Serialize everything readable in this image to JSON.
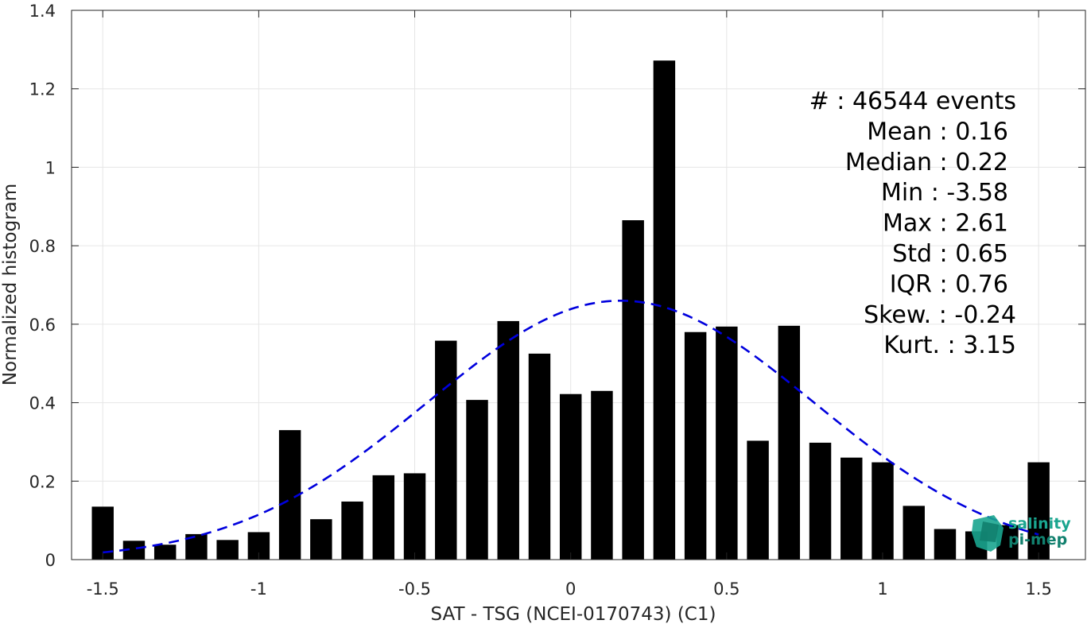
{
  "chart_data": {
    "type": "bar",
    "xlabel": "SAT - TSG (NCEI-0170743) (C1)",
    "ylabel": "Normalized histogram",
    "xlim": [
      -1.6,
      1.65
    ],
    "ylim": [
      0,
      1.4
    ],
    "xticks": [
      -1.5,
      -1,
      -0.5,
      0,
      0.5,
      1,
      1.5
    ],
    "xtick_labels": [
      "-1.5",
      "-1",
      "-0.5",
      "0",
      "0.5",
      "1",
      "1.5"
    ],
    "yticks": [
      0,
      0.2,
      0.4,
      0.6,
      0.8,
      1,
      1.2,
      1.4
    ],
    "ytick_labels": [
      "0",
      "0.2",
      "0.4",
      "0.6",
      "0.8",
      "1",
      "1.2",
      "1.4"
    ],
    "grid": true,
    "bar_color": "#000000",
    "bar_width": 0.07,
    "bars": [
      {
        "x": -1.5,
        "y": 0.135
      },
      {
        "x": -1.4,
        "y": 0.048
      },
      {
        "x": -1.3,
        "y": 0.038
      },
      {
        "x": -1.2,
        "y": 0.065
      },
      {
        "x": -1.1,
        "y": 0.05
      },
      {
        "x": -1.0,
        "y": 0.07
      },
      {
        "x": -0.9,
        "y": 0.33
      },
      {
        "x": -0.8,
        "y": 0.103
      },
      {
        "x": -0.7,
        "y": 0.148
      },
      {
        "x": -0.6,
        "y": 0.215
      },
      {
        "x": -0.5,
        "y": 0.22
      },
      {
        "x": -0.4,
        "y": 0.558
      },
      {
        "x": -0.3,
        "y": 0.407
      },
      {
        "x": -0.2,
        "y": 0.608
      },
      {
        "x": -0.1,
        "y": 0.525
      },
      {
        "x": 0.0,
        "y": 0.422
      },
      {
        "x": 0.1,
        "y": 0.43
      },
      {
        "x": 0.2,
        "y": 0.865
      },
      {
        "x": 0.3,
        "y": 1.272
      },
      {
        "x": 0.4,
        "y": 0.58
      },
      {
        "x": 0.5,
        "y": 0.594
      },
      {
        "x": 0.6,
        "y": 0.303
      },
      {
        "x": 0.7,
        "y": 0.596
      },
      {
        "x": 0.8,
        "y": 0.298
      },
      {
        "x": 0.9,
        "y": 0.26
      },
      {
        "x": 1.0,
        "y": 0.248
      },
      {
        "x": 1.1,
        "y": 0.137
      },
      {
        "x": 1.2,
        "y": 0.078
      },
      {
        "x": 1.3,
        "y": 0.072
      },
      {
        "x": 1.4,
        "y": 0.088
      },
      {
        "x": 1.5,
        "y": 0.248
      }
    ],
    "fit_curve": {
      "style": "dashed",
      "color": "#0000dd",
      "mean": 0.16,
      "std": 0.62,
      "peak": 0.66,
      "x_range": [
        -1.5,
        1.5
      ]
    },
    "stats": [
      "#  : 46544 events",
      "Mean : 0.16",
      "Median : 0.22",
      "Min : -3.58",
      "Max : 2.61",
      "Std : 0.65",
      "IQR : 0.76",
      "Skew. : -0.24",
      "Kurt. : 3.15"
    ]
  },
  "logo": {
    "line1": "salinity",
    "line2": "pi-mep",
    "color": "#1aa58f"
  }
}
